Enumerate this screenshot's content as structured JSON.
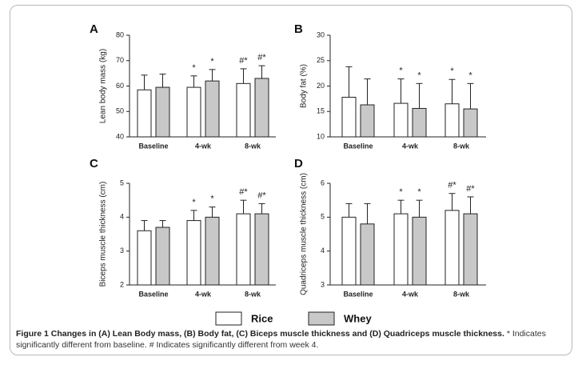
{
  "caption": {
    "label": "Figure 1",
    "title": "Changes in (A) Lean Body mass, (B) Body fat, (C) Biceps muscle thickness and (D) Quadriceps muscle thickness.",
    "note": "* Indicates significantly different from baseline. # Indicates significantly different from week 4."
  },
  "legend": [
    {
      "name": "Rice",
      "color": "#ffffff"
    },
    {
      "name": "Whey",
      "color": "#c8c8c8"
    }
  ],
  "chart_data": [
    {
      "panel": "A",
      "type": "bar",
      "ylabel": "Lean body mass (kg)",
      "categories": [
        "Baseline",
        "4-wk",
        "8-wk"
      ],
      "ylim": [
        40,
        80
      ],
      "yticks": [
        40,
        50,
        60,
        70,
        80
      ],
      "series": [
        {
          "name": "Rice",
          "values": [
            58.5,
            59.5,
            61
          ],
          "errors": [
            5.8,
            4.5,
            5.8
          ]
        },
        {
          "name": "Whey",
          "values": [
            59.5,
            62,
            63
          ],
          "errors": [
            5.2,
            4.5,
            5
          ]
        }
      ],
      "annotations": [
        [
          "",
          ""
        ],
        [
          "*",
          "*"
        ],
        [
          "#*",
          "#*"
        ]
      ]
    },
    {
      "panel": "B",
      "type": "bar",
      "ylabel": "Body fat (%)",
      "categories": [
        "Baseline",
        "4-wk",
        "8-wk"
      ],
      "ylim": [
        10,
        30
      ],
      "yticks": [
        10,
        15,
        20,
        25,
        30
      ],
      "series": [
        {
          "name": "Rice",
          "values": [
            17.8,
            16.6,
            16.5
          ],
          "errors": [
            6,
            4.8,
            4.8
          ]
        },
        {
          "name": "Whey",
          "values": [
            16.3,
            15.6,
            15.5
          ],
          "errors": [
            5.1,
            4.9,
            5
          ]
        }
      ],
      "annotations": [
        [
          "",
          ""
        ],
        [
          "*",
          "*"
        ],
        [
          "*",
          "*"
        ]
      ]
    },
    {
      "panel": "C",
      "type": "bar",
      "ylabel": "Biceps muscle thickness (cm)",
      "categories": [
        "Baseline",
        "4-wk",
        "8-wk"
      ],
      "ylim": [
        2,
        5
      ],
      "yticks": [
        2,
        3,
        4,
        5
      ],
      "series": [
        {
          "name": "Rice",
          "values": [
            3.6,
            3.9,
            4.1
          ],
          "errors": [
            0.3,
            0.3,
            0.4
          ]
        },
        {
          "name": "Whey",
          "values": [
            3.7,
            4.0,
            4.1
          ],
          "errors": [
            0.2,
            0.3,
            0.3
          ]
        }
      ],
      "annotations": [
        [
          "",
          ""
        ],
        [
          "*",
          "*"
        ],
        [
          "#*",
          "#*"
        ]
      ]
    },
    {
      "panel": "D",
      "type": "bar",
      "ylabel": "Quadriceps muscle thickness (cm)",
      "categories": [
        "Baseline",
        "4-wk",
        "8-wk"
      ],
      "ylim": [
        3,
        6
      ],
      "yticks": [
        3,
        4,
        5,
        6
      ],
      "series": [
        {
          "name": "Rice",
          "values": [
            5.0,
            5.1,
            5.2
          ],
          "errors": [
            0.4,
            0.4,
            0.5
          ]
        },
        {
          "name": "Whey",
          "values": [
            4.8,
            5.0,
            5.1
          ],
          "errors": [
            0.6,
            0.5,
            0.5
          ]
        }
      ],
      "annotations": [
        [
          "",
          ""
        ],
        [
          "*",
          "*"
        ],
        [
          "#*",
          "#*"
        ]
      ]
    }
  ]
}
